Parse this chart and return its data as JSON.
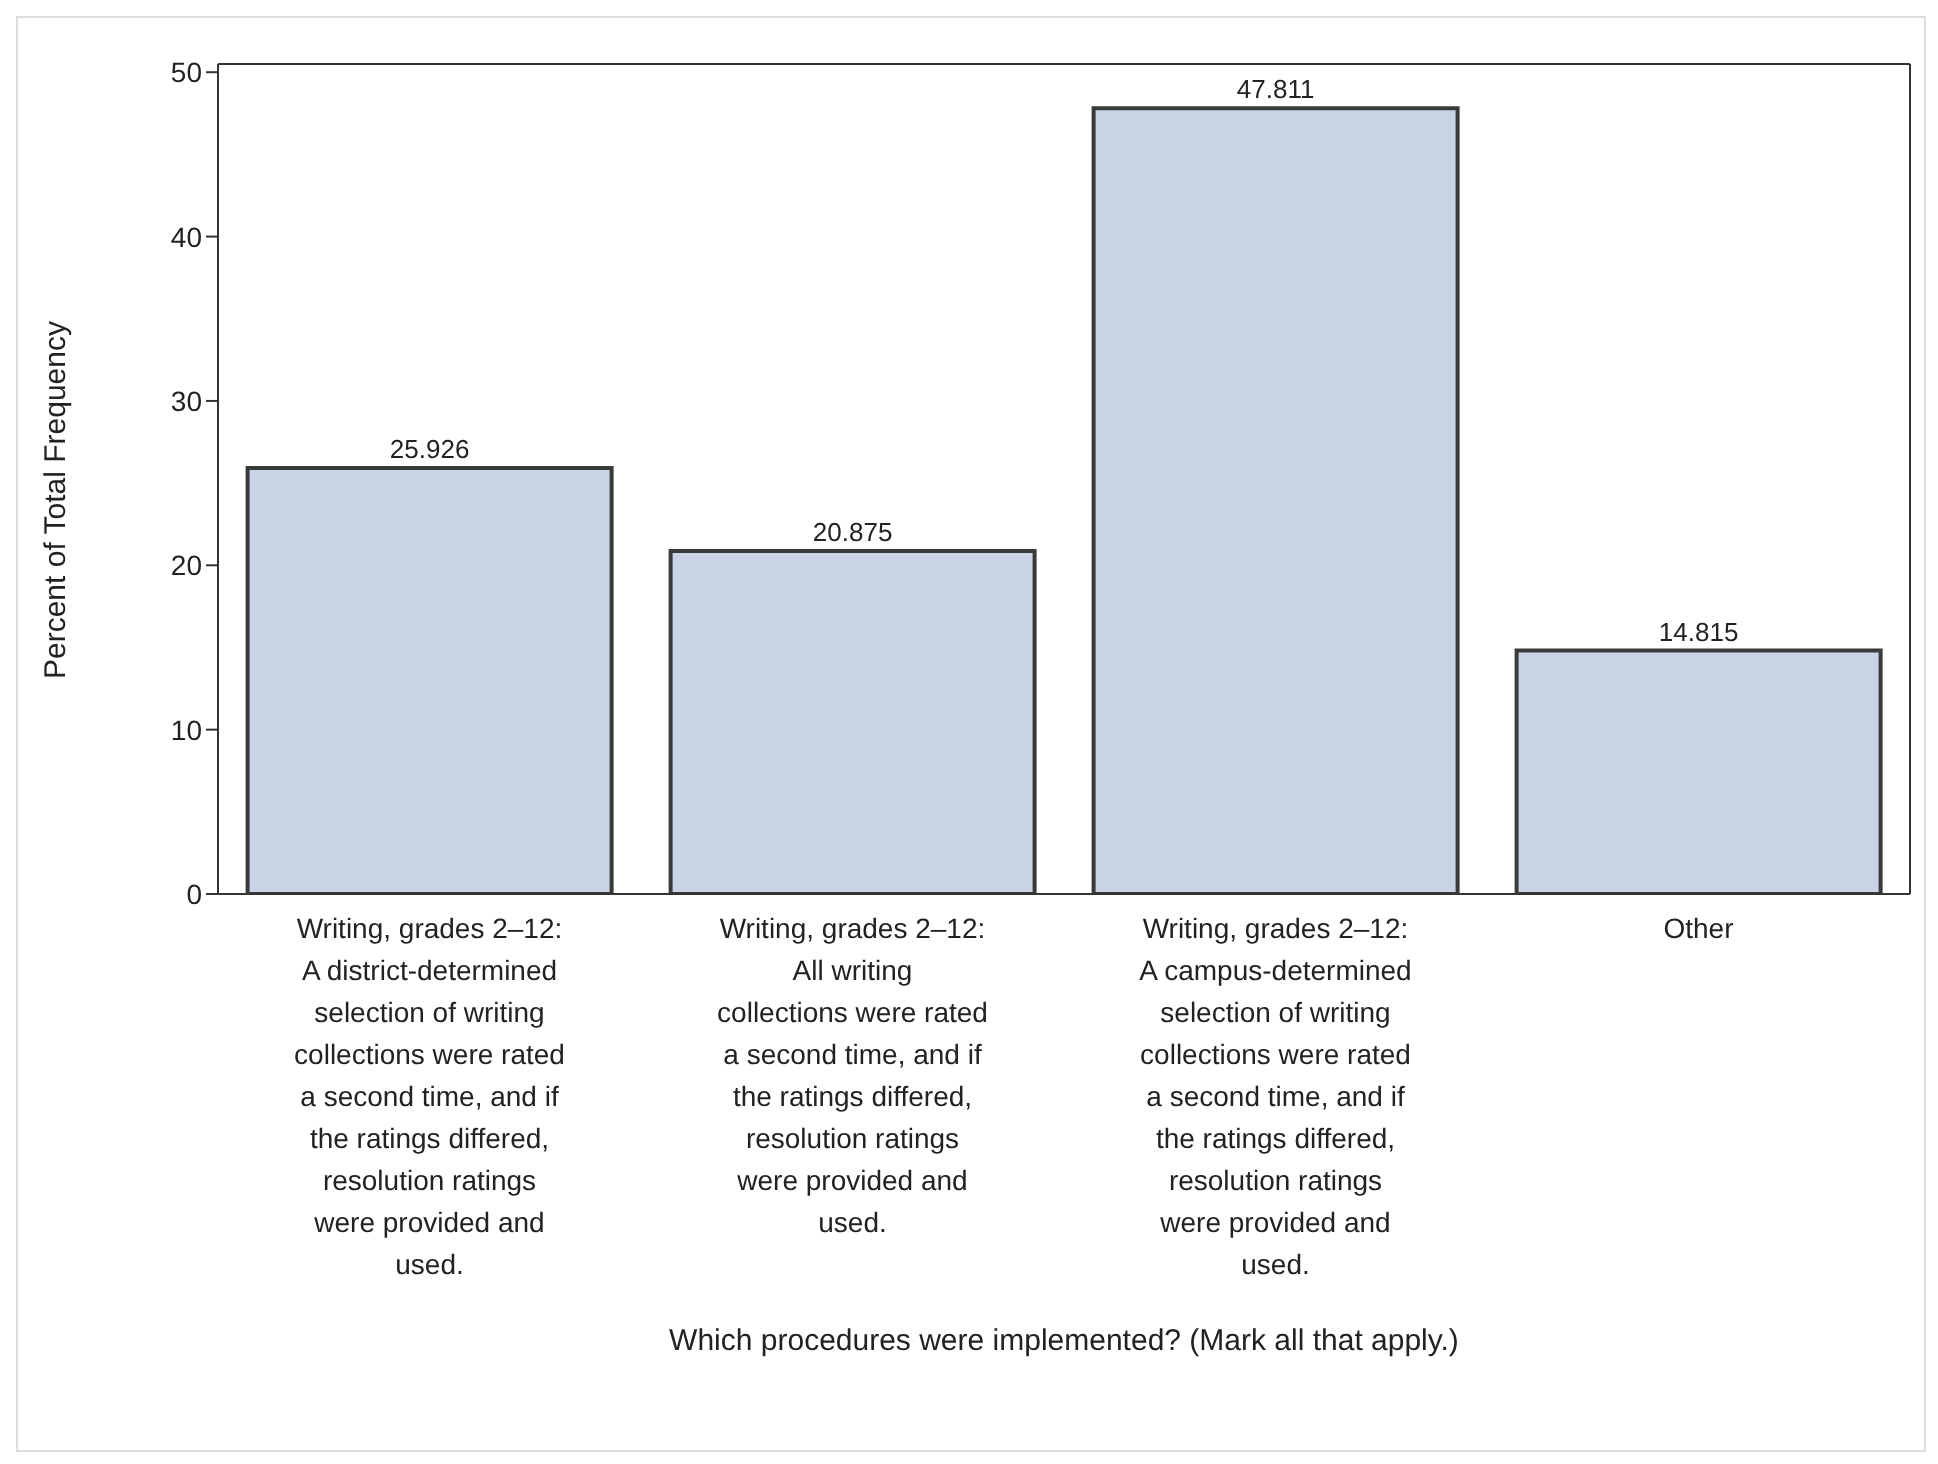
{
  "chart_data": {
    "type": "bar",
    "xlabel": "Which procedures were implemented? (Mark all that apply.)",
    "ylabel": "Percent of Total Frequency",
    "categories": [
      "Writing, grades 2–12: A district-determined selection of writing collections were rated a second time, and if the ratings differed, resolution ratings were provided and used.",
      "Writing, grades 2–12: All writing collections were rated a second time, and if the ratings differed, resolution ratings were provided and used.",
      "Writing, grades 2–12: A campus-determined selection of writing collections were rated a second time, and if the ratings differed, resolution ratings were provided and used.",
      "Other"
    ],
    "values": [
      25.926,
      20.875,
      47.811,
      14.815
    ],
    "color": "#c8d4e6",
    "ylim": [
      0,
      50.5
    ],
    "yticks": [
      0,
      10,
      20,
      30,
      40,
      50
    ],
    "grid": false,
    "data_labels": true
  }
}
